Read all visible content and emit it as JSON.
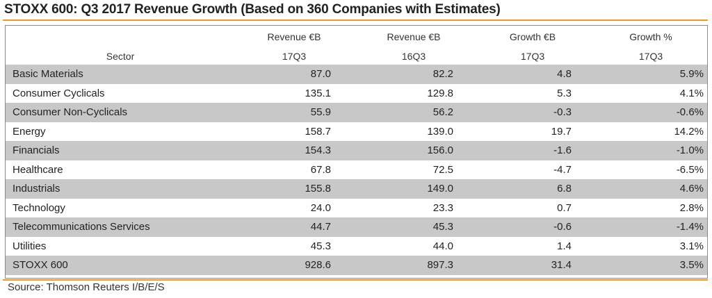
{
  "title": "STOXX 600: Q3 2017 Revenue Growth (Based on 360 Companies with Estimates)",
  "source": "Source: Thomson Reuters I/B/E/S",
  "colors": {
    "accent_rule": "#f29a1f",
    "shaded_row": "#c8c8c8"
  },
  "header": {
    "sector": "Sector",
    "col1_line1": "Revenue €B",
    "col1_line2": "17Q3",
    "col2_line1": "Revenue €B",
    "col2_line2": "16Q3",
    "col3_line1": "Growth €B",
    "col3_line2": "17Q3",
    "col4_line1": "Growth %",
    "col4_line2": "17Q3"
  },
  "chart_data": {
    "type": "table",
    "title": "STOXX 600: Q3 2017 Revenue Growth (Based on 360 Companies with Estimates)",
    "columns": [
      "Sector",
      "Revenue €B 17Q3",
      "Revenue €B 16Q3",
      "Growth €B 17Q3",
      "Growth % 17Q3"
    ],
    "rows": [
      [
        "Basic Materials",
        "87.0",
        "82.2",
        "4.8",
        "5.9%"
      ],
      [
        "Consumer Cyclicals",
        "135.1",
        "129.8",
        "5.3",
        "4.1%"
      ],
      [
        "Consumer Non-Cyclicals",
        "55.9",
        "56.2",
        "-0.3",
        "-0.6%"
      ],
      [
        "Energy",
        "158.7",
        "139.0",
        "19.7",
        "14.2%"
      ],
      [
        "Financials",
        "154.3",
        "156.0",
        "-1.6",
        "-1.0%"
      ],
      [
        "Healthcare",
        "67.8",
        "72.5",
        "-4.7",
        "-6.5%"
      ],
      [
        "Industrials",
        "155.8",
        "149.0",
        "6.8",
        "4.6%"
      ],
      [
        "Technology",
        "24.0",
        "23.3",
        "0.7",
        "2.8%"
      ],
      [
        "Telecommunications Services",
        "44.7",
        "45.3",
        "-0.6",
        "-1.4%"
      ],
      [
        "Utilities",
        "45.3",
        "44.0",
        "1.4",
        "3.1%"
      ],
      [
        "STOXX 600",
        "928.6",
        "897.3",
        "31.4",
        "3.5%"
      ]
    ]
  }
}
